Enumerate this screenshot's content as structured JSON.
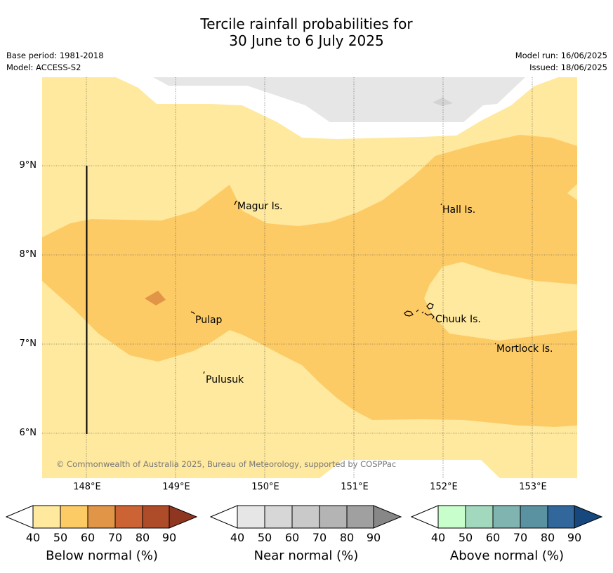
{
  "title": {
    "line1": "Tercile rainfall probabilities for",
    "line2": "30 June to 6 July 2025"
  },
  "meta": {
    "base_period": "Base period: 1981-2018",
    "model": "Model: ACCESS-S2",
    "model_run": "Model run: 16/06/2025",
    "issued": "Issued: 18/06/2025"
  },
  "map": {
    "lat_labels": [
      "9°N",
      "8°N",
      "7°N",
      "6°N"
    ],
    "lon_labels": [
      "148°E",
      "149°E",
      "150°E",
      "151°E",
      "152°E",
      "153°E"
    ],
    "places": [
      "Magur Is.",
      "Hall Is.",
      "Pulap",
      "Chuuk Is.",
      "Mortlock Is.",
      "Pulusuk"
    ],
    "copyright": "© Commonwealth of Australia 2025, Bureau of Meteorology, supported by COSPPac"
  },
  "colorbars": [
    {
      "label": "Below normal (%)",
      "ticks": [
        "40",
        "50",
        "60",
        "70",
        "80",
        "90"
      ],
      "colors": [
        "#ffe99e",
        "#fdcb66",
        "#e19547",
        "#cb6334",
        "#ae4b28",
        "#8f3620"
      ]
    },
    {
      "label": "Near normal (%)",
      "ticks": [
        "40",
        "50",
        "60",
        "70",
        "80",
        "90"
      ],
      "colors": [
        "#e6e6e6",
        "#d7d7d7",
        "#c9c9c9",
        "#b4b4b4",
        "#a0a0a0",
        "#878787"
      ]
    },
    {
      "label": "Above normal (%)",
      "ticks": [
        "40",
        "50",
        "60",
        "70",
        "80",
        "90"
      ],
      "colors": [
        "#c8fdcc",
        "#a2d8bd",
        "#7fb4b0",
        "#5b92a1",
        "#31679a",
        "#16487e"
      ]
    }
  ]
}
